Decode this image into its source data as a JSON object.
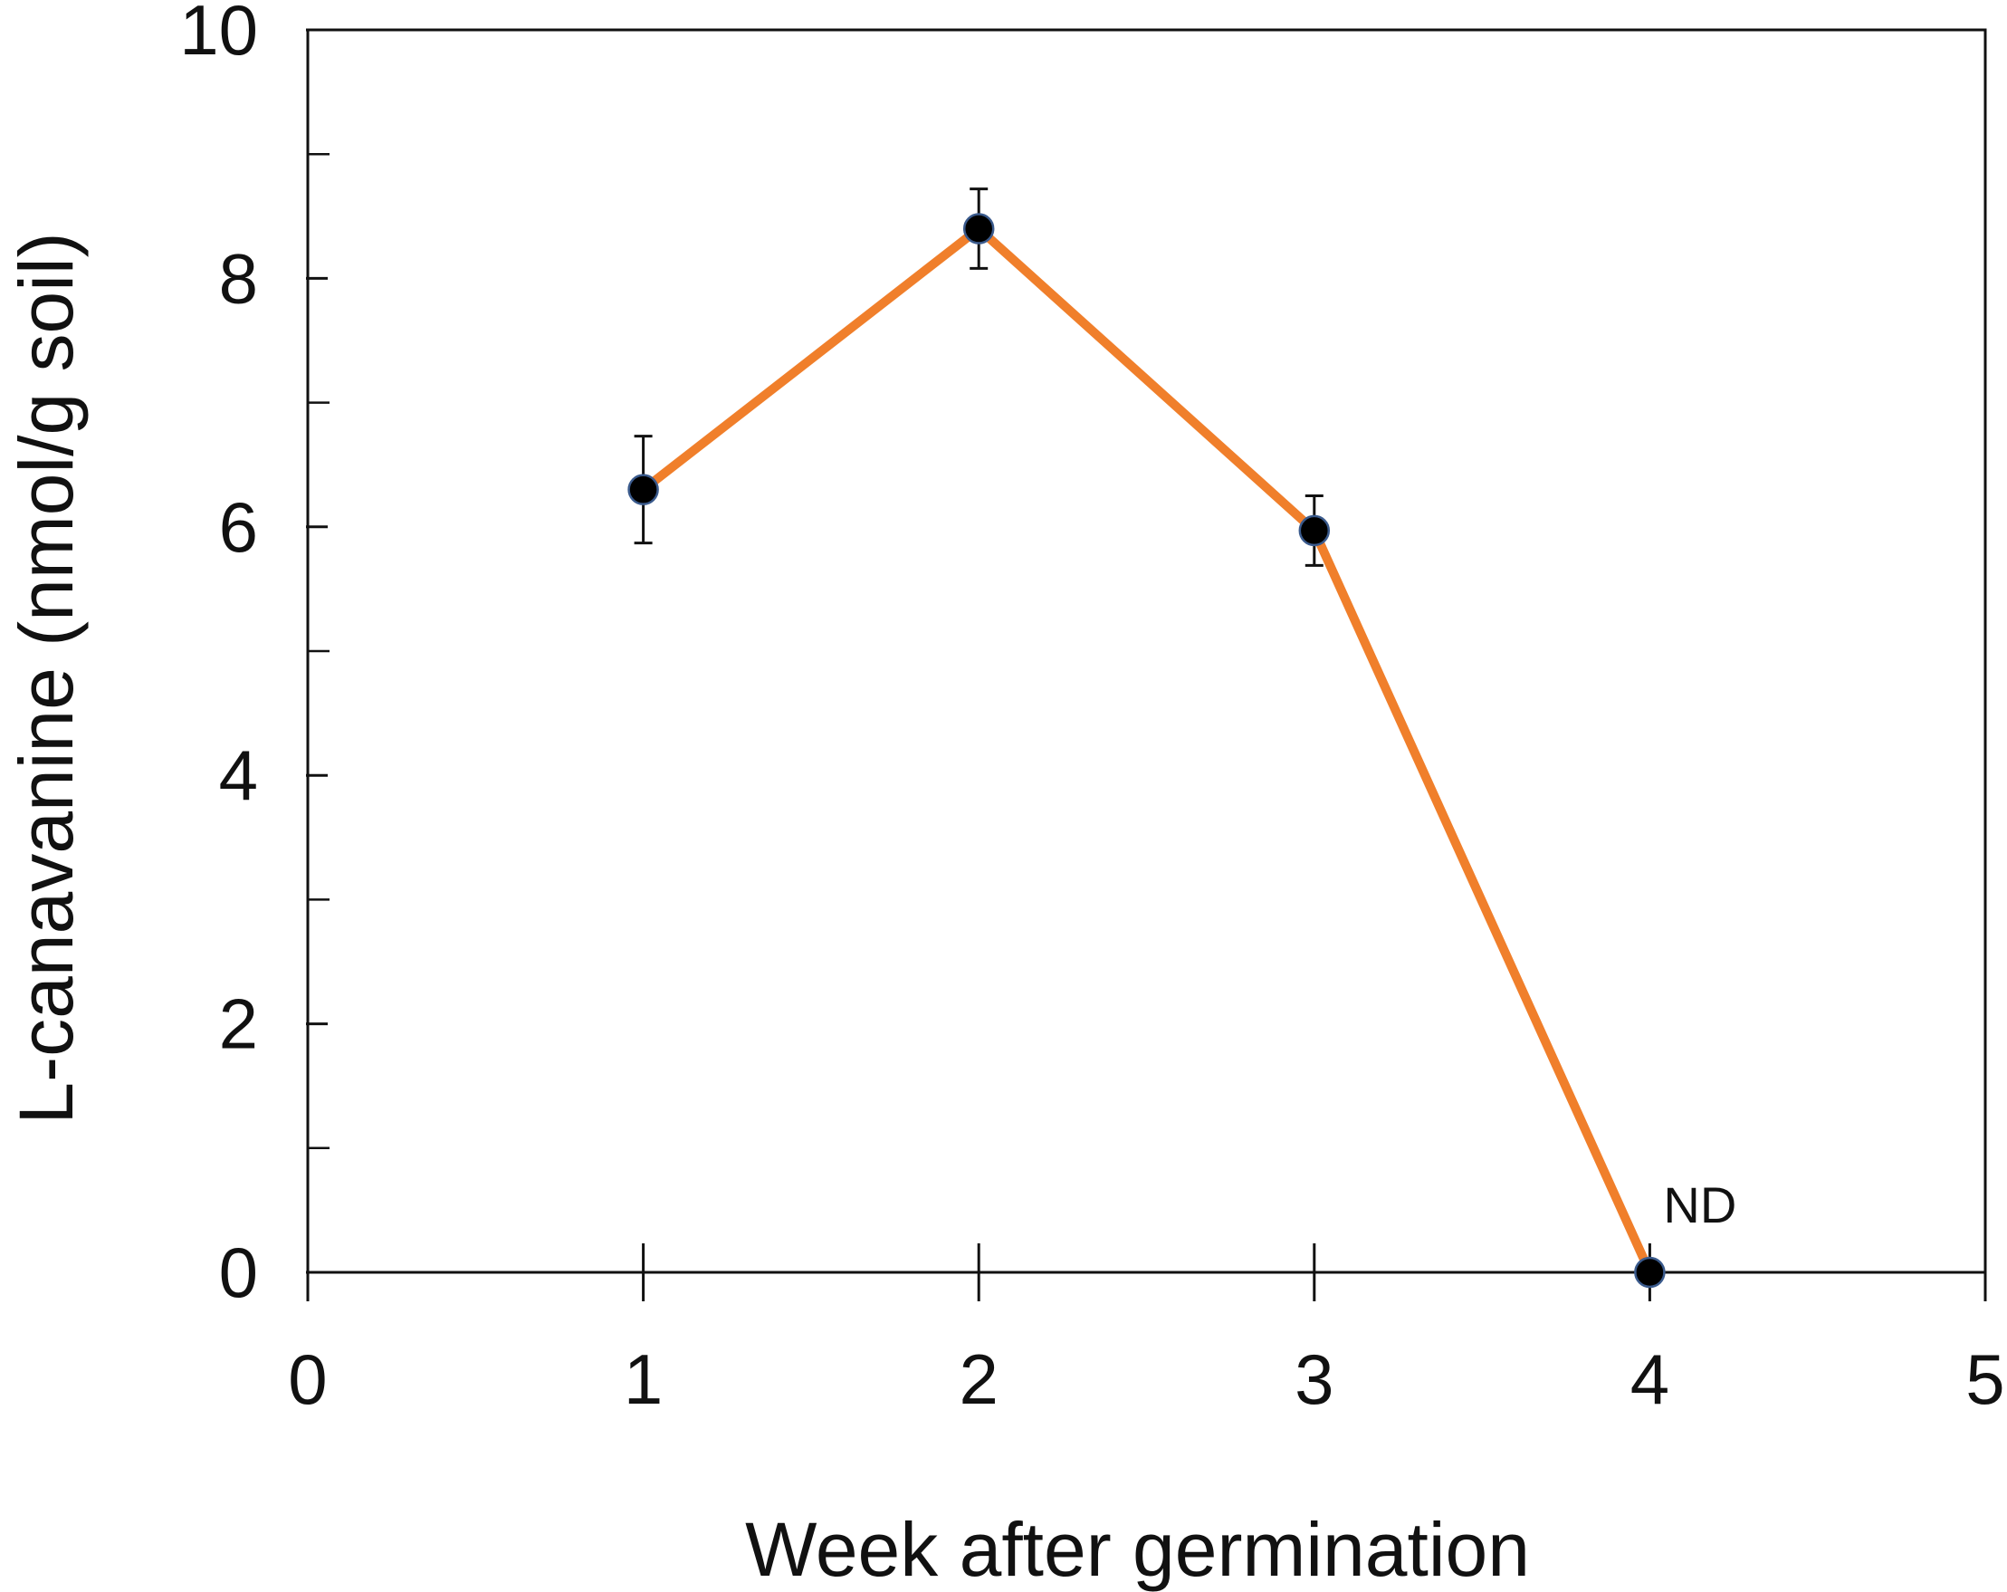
{
  "chart_data": {
    "type": "line",
    "title": "",
    "xlabel": "Week after germination",
    "ylabel": "L-canavanine (nmol/g soil)",
    "xlim": [
      0,
      5
    ],
    "ylim": [
      0,
      10
    ],
    "xticks": [
      0,
      1,
      2,
      3,
      4,
      5
    ],
    "yticks": [
      0,
      2,
      4,
      6,
      8,
      10
    ],
    "yminor_ticks": [
      1,
      3,
      5,
      7,
      9
    ],
    "grid": false,
    "series": [
      {
        "name": "L-canavanine",
        "color": "#f07f2b",
        "marker_color": "#000000",
        "x": [
          1,
          2,
          3,
          4
        ],
        "y": [
          6.3,
          8.4,
          5.97,
          0
        ],
        "error": [
          0.43,
          0.32,
          0.28,
          null
        ]
      }
    ],
    "annotations": [
      {
        "text": "ND",
        "x": 4,
        "y": 0
      }
    ]
  }
}
